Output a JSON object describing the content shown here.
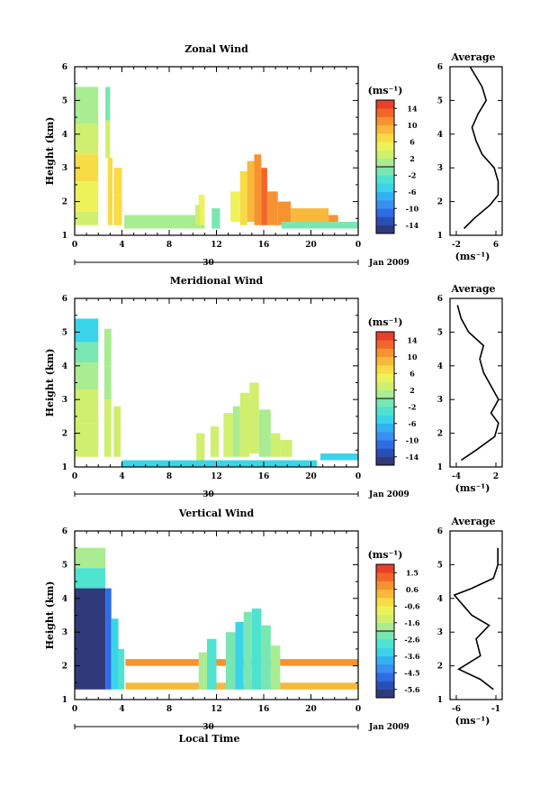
{
  "panels": [
    {
      "title": "Zonal Wind",
      "ylabel": "Height (km)",
      "xticks": [
        "0",
        "4",
        "8",
        "12",
        "16",
        "20",
        "0"
      ],
      "yticks": [
        "1",
        "2",
        "3",
        "4",
        "5",
        "6"
      ],
      "date_day": "30",
      "date_month_year": "Jan 2009",
      "colorbar": {
        "unit": "(ms⁻¹)",
        "ticks": [
          "14",
          "10",
          "6",
          "2",
          "-2",
          "-6",
          "-10",
          "-14"
        ],
        "range": [
          -16,
          16
        ]
      },
      "avg": {
        "title": "Average",
        "xlabel": "(ms⁻¹)",
        "xticks": [
          "-2",
          "6"
        ],
        "yticks": [
          "1",
          "2",
          "3",
          "4",
          "5",
          "6"
        ]
      }
    },
    {
      "title": "Meridional Wind",
      "ylabel": "Height (km)",
      "xticks": [
        "0",
        "4",
        "8",
        "12",
        "16",
        "20",
        "0"
      ],
      "yticks": [
        "1",
        "2",
        "3",
        "4",
        "5",
        "6"
      ],
      "date_day": "30",
      "date_month_year": "Jan 2009",
      "colorbar": {
        "unit": "(ms⁻¹)",
        "ticks": [
          "14",
          "10",
          "6",
          "2",
          "-2",
          "-6",
          "-10",
          "-14"
        ],
        "range": [
          -16,
          16
        ]
      },
      "avg": {
        "title": "Average",
        "xlabel": "(ms⁻¹)",
        "xticks": [
          "-4",
          "2"
        ],
        "yticks": [
          "1",
          "2",
          "3",
          "4",
          "5",
          "6"
        ]
      }
    },
    {
      "title": "Vertical Wind",
      "ylabel": "Height (km)",
      "xlabel": "Local Time",
      "xticks": [
        "0",
        "4",
        "8",
        "12",
        "16",
        "20",
        "0"
      ],
      "yticks": [
        "1",
        "2",
        "3",
        "4",
        "5",
        "6"
      ],
      "date_day": "30",
      "date_month_year": "Jan 2009",
      "colorbar": {
        "unit": "(ms⁻¹)",
        "ticks": [
          "1.5",
          "0.6",
          "-0.6",
          "-1.6",
          "-2.6",
          "-3.6",
          "-4.5",
          "-5.6"
        ],
        "range": [
          -6,
          2
        ]
      },
      "avg": {
        "title": "Average",
        "xlabel": "(ms⁻¹)",
        "xticks": [
          "-6",
          "-1"
        ],
        "yticks": [
          "1",
          "2",
          "3",
          "4",
          "5",
          "6"
        ]
      }
    }
  ],
  "chart_data": [
    {
      "type": "heatmap",
      "title": "Zonal Wind",
      "xlabel": "",
      "ylabel": "Height (km)",
      "xlim": [
        0,
        24
      ],
      "ylim": [
        1,
        6
      ],
      "colorbar_range": [
        -16,
        16
      ],
      "cells": [
        [
          0,
          2,
          5.4,
          4.3,
          0
        ],
        [
          0,
          2,
          4.3,
          3.4,
          3
        ],
        [
          0,
          2,
          3.4,
          2.6,
          6
        ],
        [
          0,
          2,
          2.6,
          1.7,
          5
        ],
        [
          0,
          2,
          1.7,
          1.3,
          3
        ],
        [
          2.6,
          3.0,
          5.4,
          4.4,
          -1
        ],
        [
          2.6,
          3.0,
          4.4,
          3.3,
          3
        ],
        [
          2.8,
          3.2,
          3.3,
          2.2,
          6
        ],
        [
          2.8,
          3.2,
          2.2,
          1.3,
          7
        ],
        [
          3.3,
          4.0,
          3.0,
          2.2,
          7
        ],
        [
          3.3,
          4.0,
          2.2,
          1.3,
          6
        ],
        [
          4.2,
          11.0,
          1.6,
          1.2,
          0
        ],
        [
          10.5,
          11.0,
          2.2,
          1.3,
          5
        ],
        [
          10.2,
          10.6,
          1.9,
          1.3,
          2
        ],
        [
          11.6,
          12.3,
          1.8,
          1.2,
          -1
        ],
        [
          13.2,
          14.0,
          2.3,
          1.4,
          4
        ],
        [
          14.0,
          14.6,
          2.9,
          1.3,
          6
        ],
        [
          14.6,
          15.2,
          3.2,
          1.4,
          8
        ],
        [
          15.2,
          15.8,
          3.4,
          1.3,
          10
        ],
        [
          15.8,
          16.3,
          3.0,
          1.3,
          12
        ],
        [
          16.3,
          17.2,
          2.3,
          1.3,
          11
        ],
        [
          17.2,
          18.3,
          2.0,
          1.3,
          10
        ],
        [
          18.3,
          21.5,
          1.8,
          1.4,
          9
        ],
        [
          21.5,
          22.3,
          1.6,
          1.4,
          10
        ],
        [
          17.5,
          24,
          1.4,
          1.2,
          -1
        ]
      ],
      "average_profile": {
        "xlim": [
          -5,
          8
        ],
        "x": [
          -1.5,
          1,
          5,
          7,
          7,
          6,
          3,
          1.5,
          0.5,
          2,
          4,
          3,
          1,
          0
        ],
        "heights": [
          1.2,
          1.5,
          1.9,
          2.2,
          2.6,
          3.0,
          3.4,
          3.8,
          4.2,
          4.6,
          5.0,
          5.4,
          5.8,
          6.0
        ]
      }
    },
    {
      "type": "heatmap",
      "title": "Meridional Wind",
      "xlabel": "",
      "ylabel": "Height (km)",
      "xlim": [
        0,
        24
      ],
      "ylim": [
        1,
        6
      ],
      "colorbar_range": [
        -16,
        16
      ],
      "cells": [
        [
          0,
          2,
          5.4,
          4.7,
          -6
        ],
        [
          0,
          2,
          4.7,
          4.1,
          -2
        ],
        [
          0,
          2,
          4.1,
          3.3,
          0
        ],
        [
          0,
          2,
          3.3,
          2.3,
          3
        ],
        [
          0,
          2,
          2.3,
          1.3,
          2
        ],
        [
          2.5,
          3.1,
          5.1,
          4.0,
          1
        ],
        [
          2.5,
          3.1,
          4.0,
          3.0,
          0
        ],
        [
          2.5,
          3.1,
          3.0,
          1.3,
          3
        ],
        [
          3.3,
          3.9,
          2.8,
          1.3,
          2
        ],
        [
          4.0,
          20.5,
          1.2,
          1.0,
          -6
        ],
        [
          10.3,
          11.0,
          2.0,
          1.2,
          2
        ],
        [
          11.5,
          12.2,
          2.2,
          1.3,
          3
        ],
        [
          12.6,
          13.4,
          2.6,
          1.3,
          2
        ],
        [
          13.4,
          14.0,
          2.8,
          1.3,
          1
        ],
        [
          14.0,
          14.8,
          3.2,
          1.3,
          3
        ],
        [
          14.8,
          15.6,
          3.5,
          1.4,
          2
        ],
        [
          15.6,
          16.6,
          2.7,
          1.3,
          1
        ],
        [
          16.6,
          17.4,
          2.0,
          1.3,
          3
        ],
        [
          17.4,
          18.4,
          1.8,
          1.3,
          2
        ],
        [
          20.8,
          24,
          1.4,
          1.2,
          -6
        ]
      ],
      "average_profile": {
        "xlim": [
          -4.5,
          2.5
        ],
        "x": [
          -3,
          -1,
          1.5,
          2,
          1,
          2,
          1,
          0,
          -0.5,
          0,
          -2,
          -3,
          -3.5
        ],
        "heights": [
          1.2,
          1.5,
          1.9,
          2.3,
          2.6,
          3.0,
          3.4,
          3.8,
          4.2,
          4.6,
          5.0,
          5.4,
          5.8
        ]
      }
    },
    {
      "type": "heatmap",
      "title": "Vertical Wind",
      "xlabel": "Local Time",
      "ylabel": "Height (km)",
      "xlim": [
        0,
        24
      ],
      "ylim": [
        1,
        6
      ],
      "colorbar_range": [
        -6,
        2
      ],
      "cells": [
        [
          0,
          2.6,
          5.5,
          4.9,
          -1.8
        ],
        [
          0,
          2.6,
          4.9,
          4.3,
          -2.8
        ],
        [
          0,
          2.6,
          4.3,
          1.3,
          -5.8
        ],
        [
          2.6,
          3.1,
          4.3,
          1.3,
          -4.8
        ],
        [
          3.1,
          3.7,
          3.4,
          1.3,
          -3.4
        ],
        [
          3.7,
          4.2,
          2.5,
          1.3,
          -2.6
        ],
        [
          4.3,
          24,
          2.2,
          2.0,
          0.8
        ],
        [
          4.3,
          24,
          1.5,
          1.3,
          0.3
        ],
        [
          10.5,
          11.2,
          2.4,
          1.3,
          -2.0
        ],
        [
          11.2,
          12.0,
          2.8,
          1.3,
          -2.8
        ],
        [
          12.8,
          13.6,
          3.0,
          1.3,
          -2.2
        ],
        [
          13.6,
          14.3,
          3.3,
          1.3,
          -3.2
        ],
        [
          14.3,
          15.0,
          3.6,
          1.3,
          -2.4
        ],
        [
          15.0,
          15.8,
          3.7,
          1.3,
          -3.0
        ],
        [
          15.8,
          16.6,
          3.2,
          1.3,
          -2.2
        ],
        [
          16.6,
          17.4,
          2.6,
          1.3,
          -1.6
        ]
      ],
      "average_profile": {
        "xlim": [
          -6.5,
          -0.5
        ],
        "x": [
          -1.5,
          -3,
          -5.5,
          -3,
          -3.5,
          -2,
          -4,
          -5,
          -6,
          -4,
          -1.5,
          -1,
          -1
        ],
        "heights": [
          1.3,
          1.6,
          1.9,
          2.3,
          2.8,
          3.2,
          3.5,
          3.8,
          4.1,
          4.3,
          4.6,
          5.0,
          5.5
        ]
      }
    }
  ]
}
